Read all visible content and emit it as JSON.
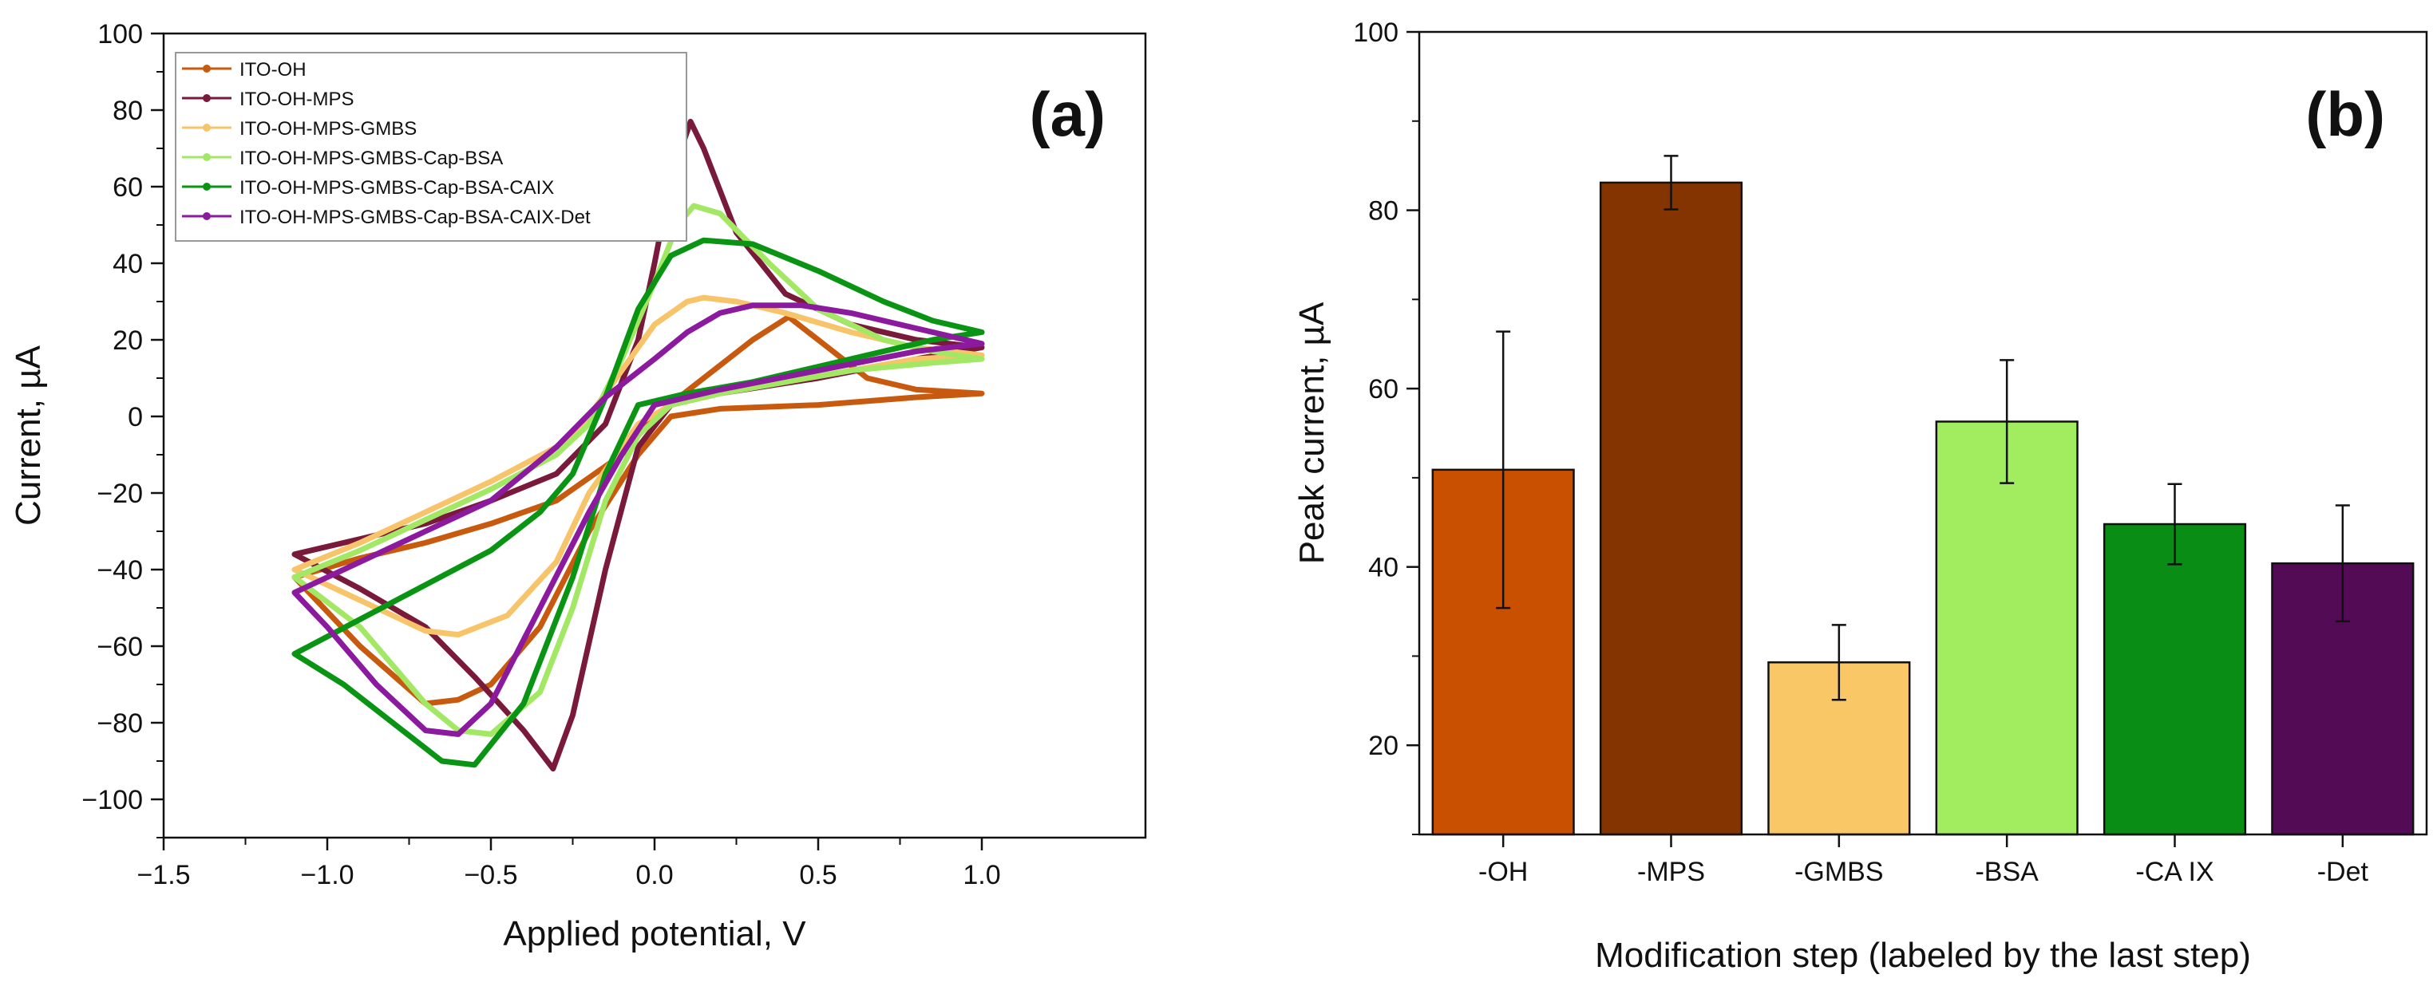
{
  "chart_data": [
    {
      "type": "line",
      "panel_label": "(a)",
      "xlabel": "Applied potential, V",
      "ylabel": "Current, µA",
      "xlim": [
        -1.5,
        1.5
      ],
      "ylim": [
        -110,
        100
      ],
      "x_ticks": [
        -1.5,
        -1.0,
        -0.5,
        0.0,
        0.5,
        1.0
      ],
      "x_tick_labels": [
        "−1.5",
        "−1.0",
        "−0.5",
        "0.0",
        "0.5",
        "1.0"
      ],
      "y_ticks": [
        -100,
        -80,
        -60,
        -40,
        -20,
        0,
        20,
        40,
        60,
        80,
        100
      ],
      "y_tick_labels": [
        "−100",
        "−80",
        "−60",
        "−40",
        "−20",
        "0",
        "20",
        "40",
        "60",
        "80",
        "100"
      ],
      "legend_position": "top-left",
      "series": [
        {
          "name": "ITO-OH",
          "color": "#c85a0f",
          "x": [
            -1.1,
            -0.9,
            -0.7,
            -0.5,
            -0.3,
            -0.1,
            0.0,
            0.15,
            0.3,
            0.41,
            0.5,
            0.65,
            0.8,
            1.0,
            0.8,
            0.5,
            0.2,
            0.05,
            -0.05,
            -0.2,
            -0.35,
            -0.5,
            -0.6,
            -0.7,
            -0.9,
            -1.1
          ],
          "y": [
            -42,
            -37,
            -33,
            -28,
            -22,
            -10,
            0,
            10,
            20,
            26,
            20,
            10,
            7,
            6,
            5,
            3,
            2,
            0,
            -10,
            -30,
            -55,
            -70,
            -74,
            -75,
            -60,
            -42
          ]
        },
        {
          "name": "ITO-OH-MPS",
          "color": "#7a1a3a",
          "x": [
            -1.1,
            -0.9,
            -0.7,
            -0.5,
            -0.3,
            -0.15,
            -0.05,
            0.0,
            0.05,
            0.11,
            0.15,
            0.25,
            0.4,
            0.6,
            0.8,
            1.0,
            0.8,
            0.5,
            0.2,
            0.05,
            -0.05,
            -0.15,
            -0.25,
            -0.31,
            -0.4,
            -0.55,
            -0.7,
            -0.9,
            -1.1
          ],
          "y": [
            -36,
            -32,
            -28,
            -22,
            -15,
            -2,
            20,
            40,
            62,
            77,
            70,
            48,
            32,
            24,
            20,
            18,
            15,
            10,
            6,
            3,
            -8,
            -40,
            -78,
            -92,
            -82,
            -68,
            -55,
            -45,
            -36
          ]
        },
        {
          "name": "ITO-OH-MPS-GMBS",
          "color": "#f8c46a",
          "x": [
            -1.1,
            -0.9,
            -0.7,
            -0.5,
            -0.3,
            -0.2,
            -0.1,
            0.0,
            0.1,
            0.15,
            0.25,
            0.4,
            0.6,
            0.8,
            1.0,
            0.8,
            0.6,
            0.4,
            0.2,
            0.05,
            -0.05,
            -0.2,
            -0.3,
            -0.45,
            -0.6,
            -0.7,
            -0.85,
            -1.0,
            -1.1
          ],
          "y": [
            -40,
            -33,
            -25,
            -17,
            -8,
            0,
            12,
            24,
            30,
            31,
            30,
            27,
            22,
            18,
            16,
            15,
            12,
            9,
            6,
            3,
            -2,
            -20,
            -38,
            -52,
            -57,
            -56,
            -50,
            -44,
            -40
          ]
        },
        {
          "name": "ITO-OH-MPS-GMBS-Cap-BSA",
          "color": "#a3e865",
          "x": [
            -1.1,
            -0.9,
            -0.7,
            -0.5,
            -0.3,
            -0.2,
            -0.1,
            0.0,
            0.07,
            0.12,
            0.2,
            0.35,
            0.5,
            0.7,
            0.85,
            1.0,
            0.85,
            0.6,
            0.4,
            0.2,
            0.05,
            -0.05,
            -0.15,
            -0.25,
            -0.35,
            -0.5,
            -0.6,
            -0.7,
            -0.9,
            -1.1
          ],
          "y": [
            -42,
            -35,
            -27,
            -19,
            -10,
            -2,
            15,
            35,
            50,
            55,
            53,
            40,
            28,
            20,
            17,
            15,
            14,
            12,
            9,
            6,
            3,
            -5,
            -22,
            -50,
            -72,
            -83,
            -82,
            -75,
            -55,
            -42
          ]
        },
        {
          "name": "ITO-OH-MPS-GMBS-Cap-BSA-CAIX",
          "color": "#0a9414",
          "x": [
            -1.1,
            -0.9,
            -0.7,
            -0.5,
            -0.35,
            -0.25,
            -0.15,
            -0.05,
            0.05,
            0.15,
            0.3,
            0.5,
            0.7,
            0.85,
            1.0,
            0.85,
            0.6,
            0.3,
            0.1,
            -0.05,
            -0.15,
            -0.25,
            -0.4,
            -0.55,
            -0.65,
            -0.8,
            -0.95,
            -1.1
          ],
          "y": [
            -62,
            -53,
            -44,
            -35,
            -25,
            -15,
            5,
            28,
            42,
            46,
            45,
            38,
            30,
            25,
            22,
            20,
            15,
            9,
            6,
            3,
            -15,
            -42,
            -75,
            -91,
            -90,
            -80,
            -70,
            -62
          ]
        },
        {
          "name": "ITO-OH-MPS-GMBS-Cap-BSA-CAIX-Det",
          "color": "#8b1a9e",
          "x": [
            -1.1,
            -0.9,
            -0.7,
            -0.5,
            -0.3,
            -0.15,
            0.0,
            0.1,
            0.2,
            0.3,
            0.45,
            0.6,
            0.8,
            1.0,
            0.8,
            0.5,
            0.2,
            0.0,
            -0.1,
            -0.2,
            -0.35,
            -0.5,
            -0.6,
            -0.7,
            -0.85,
            -1.0,
            -1.1
          ],
          "y": [
            -46,
            -38,
            -30,
            -22,
            -8,
            5,
            15,
            22,
            27,
            29,
            29,
            27,
            23,
            19,
            17,
            12,
            7,
            3,
            -10,
            -25,
            -50,
            -75,
            -83,
            -82,
            -70,
            -55,
            -46
          ]
        }
      ]
    },
    {
      "type": "bar",
      "panel_label": "(b)",
      "xlabel": "Modification step (labeled by the last step)",
      "ylabel": "Peak current, µA",
      "ylim": [
        10,
        100
      ],
      "y_ticks": [
        20,
        40,
        60,
        80,
        100
      ],
      "y_tick_labels": [
        "20",
        "40",
        "60",
        "80",
        "100"
      ],
      "categories": [
        "-OH",
        "-MPS",
        "-GMBS",
        "-BSA",
        "-CA IX",
        "-Det"
      ],
      "values": [
        50.9,
        83.1,
        29.3,
        56.3,
        44.8,
        40.4
      ],
      "errors": [
        15.5,
        3.0,
        4.2,
        6.9,
        4.5,
        6.5
      ],
      "colors": [
        "#c85000",
        "#833400",
        "#f9c765",
        "#a2ec60",
        "#0a8d14",
        "#540b56"
      ]
    }
  ]
}
